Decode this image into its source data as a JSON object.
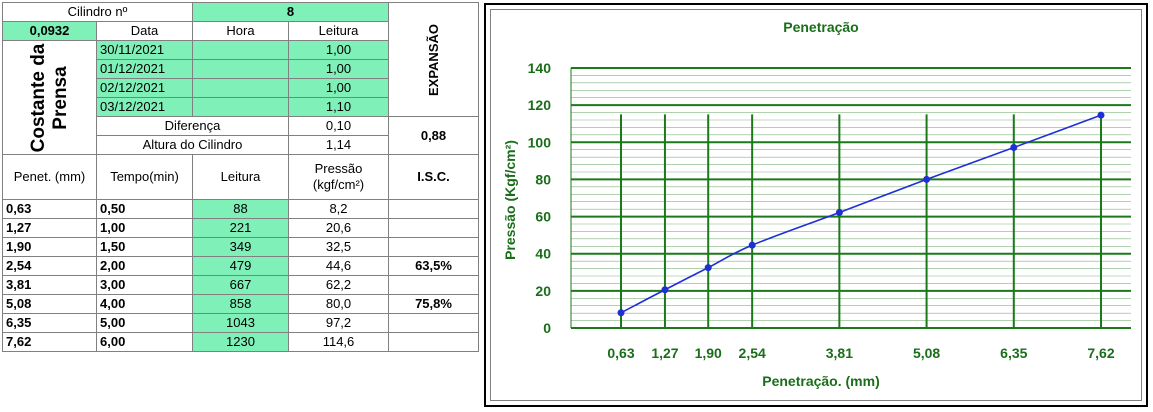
{
  "table": {
    "cilindro_label": "Cilindro nº",
    "cilindro_value": "8",
    "constante_value": "0,0932",
    "constante_label": "Costante da Prensa",
    "col_data": "Data",
    "col_hora": "Hora",
    "col_leitura": "Leitura",
    "expansao_label": "EXPANSÃO",
    "readings": [
      {
        "data": "30/11/2021",
        "hora": "",
        "leitura": "1,00"
      },
      {
        "data": "01/12/2021",
        "hora": "",
        "leitura": "1,00"
      },
      {
        "data": "02/12/2021",
        "hora": "",
        "leitura": "1,00"
      },
      {
        "data": "03/12/2021",
        "hora": "",
        "leitura": "1,10"
      }
    ],
    "diferenca_label": "Diferença",
    "diferenca_value": "0,10",
    "altura_label": "Altura do Cilindro",
    "altura_value": "1,14",
    "expansao_value": "0,88",
    "headers": {
      "penet": "Penet. (mm)",
      "tempo": "Tempo(min)",
      "leitura": "Leitura",
      "pressao": "Pressão (kgf/cm²)",
      "isc": "I.S.C."
    },
    "rows": [
      {
        "penet": "0,63",
        "tempo": "0,50",
        "leitura": "88",
        "pressao": "8,2",
        "isc": ""
      },
      {
        "penet": "1,27",
        "tempo": "1,00",
        "leitura": "221",
        "pressao": "20,6",
        "isc": ""
      },
      {
        "penet": "1,90",
        "tempo": "1,50",
        "leitura": "349",
        "pressao": "32,5",
        "isc": ""
      },
      {
        "penet": "2,54",
        "tempo": "2,00",
        "leitura": "479",
        "pressao": "44,6",
        "isc": "63,5%"
      },
      {
        "penet": "3,81",
        "tempo": "3,00",
        "leitura": "667",
        "pressao": "62,2",
        "isc": ""
      },
      {
        "penet": "5,08",
        "tempo": "4,00",
        "leitura": "858",
        "pressao": "80,0",
        "isc": "75,8%"
      },
      {
        "penet": "6,35",
        "tempo": "5,00",
        "leitura": "1043",
        "pressao": "97,2",
        "isc": ""
      },
      {
        "penet": "7,62",
        "tempo": "6,00",
        "leitura": "1230",
        "pressao": "114,6",
        "isc": ""
      }
    ]
  },
  "chart_data": {
    "type": "line",
    "title": "Penetração",
    "xlabel": "Penetração. (mm)",
    "ylabel": "Pressão (Kgf/cm²)",
    "x": [
      0.63,
      1.27,
      1.9,
      2.54,
      3.81,
      5.08,
      6.35,
      7.62
    ],
    "x_tick_labels": [
      "0,63",
      "1,27",
      "1,90",
      "2,54",
      "3,81",
      "5,08",
      "6,35",
      "7,62"
    ],
    "series": [
      {
        "values": [
          8.2,
          20.6,
          32.5,
          44.6,
          62.2,
          80.0,
          97.2,
          114.6
        ]
      }
    ],
    "ylim": [
      0,
      140
    ],
    "y_major_ticks": [
      0,
      20,
      40,
      60,
      80,
      100,
      120,
      140
    ],
    "y_minor_step": 4,
    "grid": true,
    "legend": "none",
    "colors": {
      "grid": "#1a7a1a",
      "line": "#1f2fd6",
      "marker": "#1f2fd6",
      "text": "#1a6e1a",
      "highlight": "#7ff0b8"
    }
  }
}
